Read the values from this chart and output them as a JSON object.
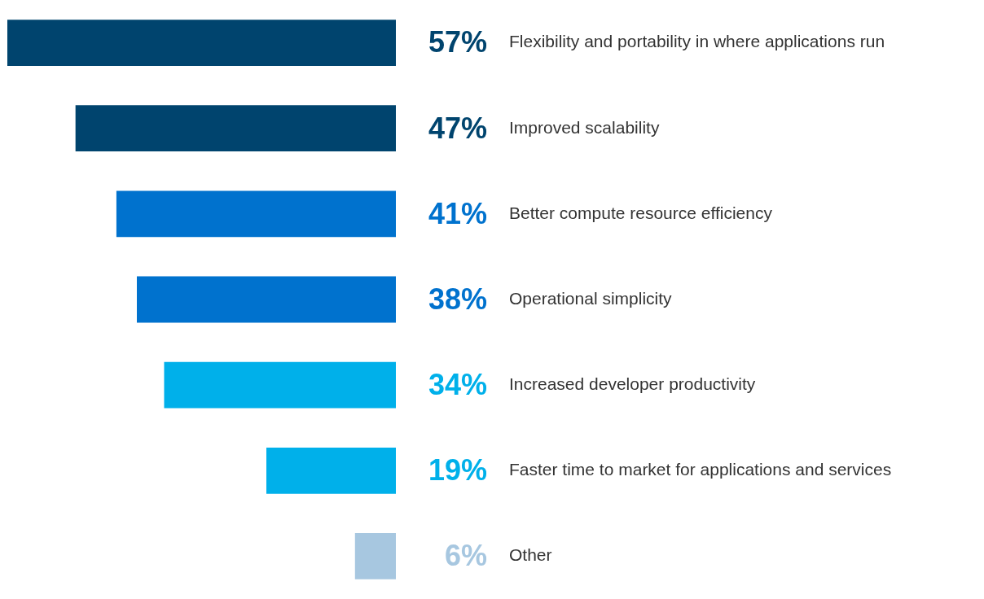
{
  "chart_data": {
    "type": "bar",
    "orientation": "horizontal",
    "categories": [
      "Flexibility and portability in where applications run",
      "Improved scalability",
      "Better compute resource efficiency",
      "Operational simplicity",
      "Increased developer productivity",
      "Faster time to market for applications and services",
      "Other"
    ],
    "values": [
      57,
      47,
      41,
      38,
      34,
      19,
      6
    ],
    "value_labels": [
      "57%",
      "47%",
      "41%",
      "38%",
      "34%",
      "19%",
      "6%"
    ],
    "colors": [
      "#00446e",
      "#00446e",
      "#0072ce",
      "#0072ce",
      "#00b0ea",
      "#00b0ea",
      "#a7c7e0"
    ],
    "tick_labels": "y"
  }
}
